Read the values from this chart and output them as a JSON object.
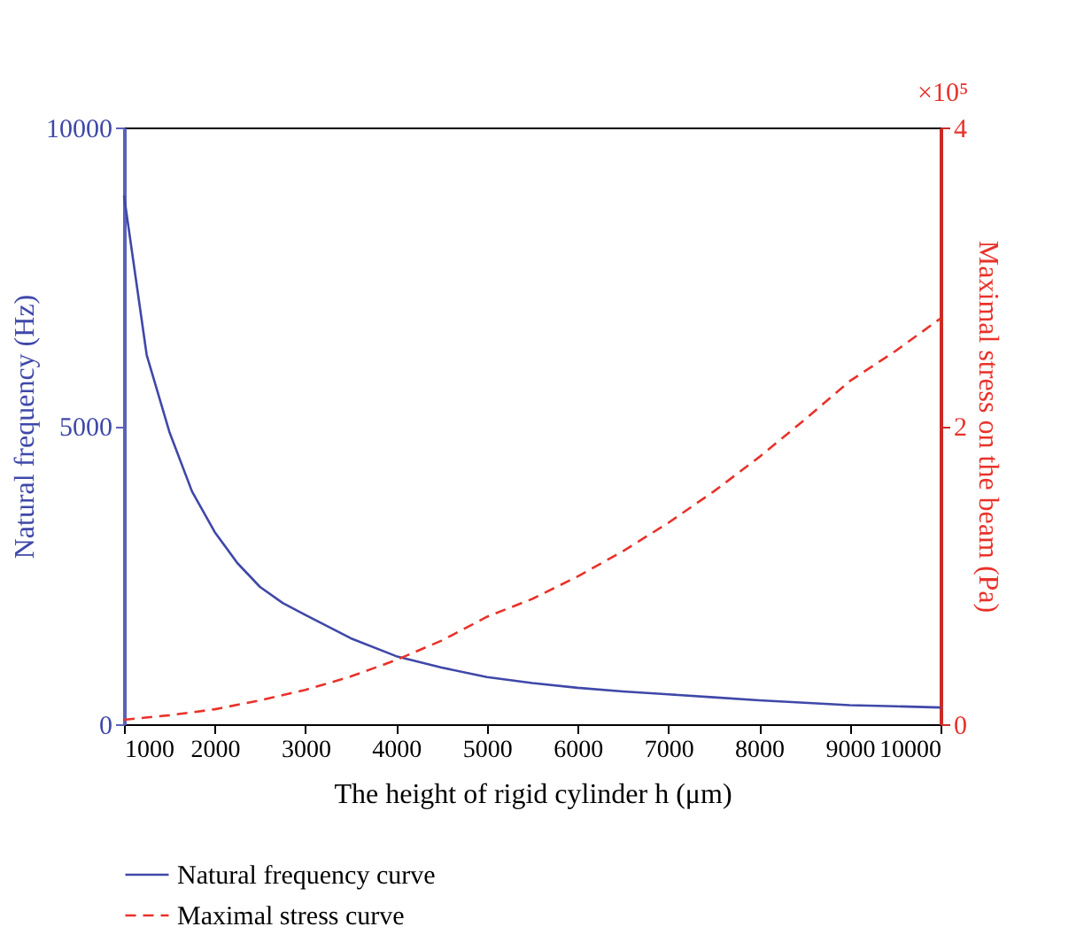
{
  "chart_data": {
    "type": "line",
    "xlabel": "The height of rigid cylinder h (μm)",
    "ylabel": "Natural frequency (Hz)",
    "y2label": "Maximal stress on the beam (Pa)",
    "annotations": [
      "×10⁵"
    ],
    "xlim": [
      1000,
      10000
    ],
    "xticks": [
      1000,
      2000,
      3000,
      4000,
      5000,
      6000,
      7000,
      8000,
      9000,
      10000
    ],
    "ylim": [
      0,
      10000
    ],
    "yticks": [
      0,
      5000,
      10000
    ],
    "y2lim": [
      0,
      4
    ],
    "y2ticks": [
      0,
      2,
      4
    ],
    "grid": false,
    "legend": "bottom",
    "marker": "none",
    "series": [
      {
        "name": "Natural frequency curve",
        "color": "#3f48a8",
        "line_style": "solid",
        "x": [
          1000,
          1250,
          1500,
          1750,
          2000,
          2250,
          2500,
          2750,
          3000,
          3500,
          4000,
          4500,
          5000,
          5500,
          6000,
          6500,
          7000,
          7500,
          8000,
          8500,
          9000,
          9500,
          10000
        ],
        "values": [
          8860,
          6190,
          4900,
          3900,
          3220,
          2700,
          2300,
          2030,
          1830,
          1440,
          1140,
          950,
          790,
          690,
          610,
          550,
          500,
          450,
          400,
          360,
          320,
          300,
          280
        ]
      },
      {
        "name": "Maximal stress curve",
        "color": "#e8322a",
        "line_style": "dashed",
        "axis": "y2",
        "x": [
          1000,
          1500,
          2000,
          2500,
          3000,
          3500,
          4000,
          4500,
          5000,
          5500,
          6000,
          6500,
          7000,
          7500,
          8000,
          8500,
          9000,
          9500,
          10000
        ],
        "values": [
          0.03,
          0.06,
          0.1,
          0.16,
          0.23,
          0.32,
          0.43,
          0.56,
          0.72,
          0.84,
          0.99,
          1.16,
          1.35,
          1.56,
          1.79,
          2.04,
          2.3,
          2.5,
          2.72
        ]
      }
    ]
  }
}
